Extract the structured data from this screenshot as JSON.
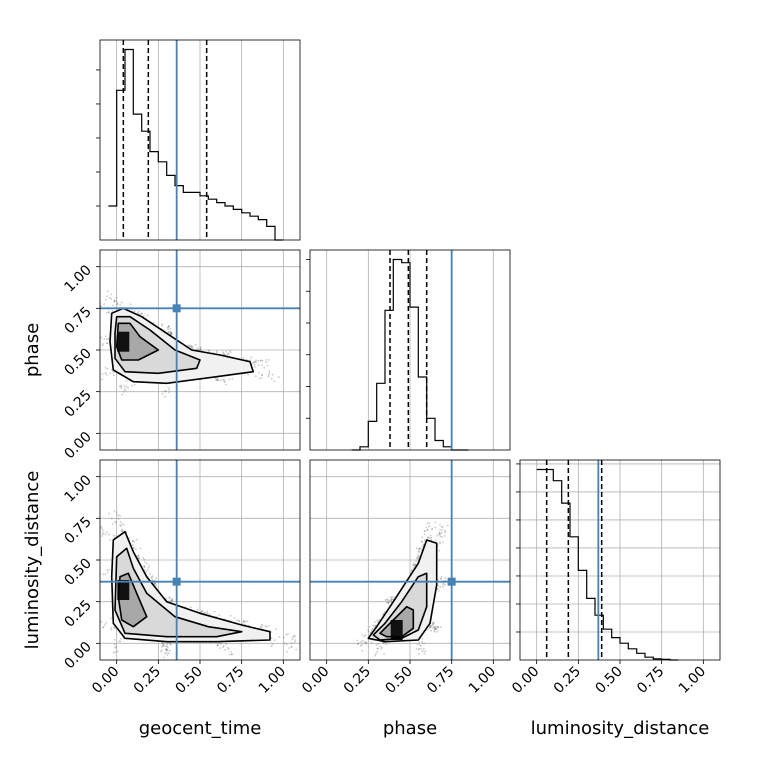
{
  "chart_data": {
    "type": "corner",
    "parameters": [
      "geocent_time",
      "phase",
      "luminosity_distance"
    ],
    "tick_labels": [
      "0.00",
      "0.25",
      "0.50",
      "0.75",
      "1.00"
    ],
    "axis_range": [
      -0.1,
      1.1
    ],
    "grid": true,
    "truths": {
      "geocent_time": 0.36,
      "phase": 0.75,
      "luminosity_distance": 0.37
    },
    "truth_color": "#4682b4",
    "quantiles": {
      "geocent_time": [
        0.04,
        0.19,
        0.54
      ],
      "phase": [
        0.38,
        0.49,
        0.6
      ],
      "luminosity_distance": [
        0.06,
        0.19,
        0.39
      ]
    },
    "marginals": {
      "geocent_time": {
        "bin_edges": [
          -0.05,
          0.0,
          0.05,
          0.1,
          0.15,
          0.2,
          0.25,
          0.3,
          0.35,
          0.4,
          0.45,
          0.5,
          0.55,
          0.6,
          0.65,
          0.7,
          0.75,
          0.8,
          0.85,
          0.9,
          0.95,
          1.0
        ],
        "density": [
          1.0,
          4.4,
          5.6,
          3.7,
          3.2,
          2.6,
          2.3,
          1.9,
          1.6,
          1.4,
          1.4,
          1.3,
          1.2,
          1.1,
          1.0,
          0.9,
          0.8,
          0.7,
          0.6,
          0.4,
          0.0
        ]
      },
      "phase": {
        "bin_edges": [
          0.15,
          0.2,
          0.25,
          0.3,
          0.35,
          0.4,
          0.45,
          0.5,
          0.55,
          0.6,
          0.65,
          0.7,
          0.75,
          0.8,
          0.85
        ],
        "density": [
          0.0,
          0.1,
          0.9,
          2.1,
          4.4,
          6.0,
          5.9,
          4.5,
          2.3,
          1.0,
          0.3,
          0.1,
          0.0,
          0.0
        ]
      },
      "luminosity_distance": {
        "bin_edges": [
          0.0,
          0.05,
          0.1,
          0.15,
          0.2,
          0.25,
          0.3,
          0.35,
          0.4,
          0.45,
          0.5,
          0.55,
          0.6,
          0.65,
          0.7,
          0.75,
          0.8,
          0.85
        ],
        "density": [
          3.4,
          3.4,
          3.2,
          2.8,
          2.2,
          1.6,
          1.1,
          0.8,
          0.55,
          0.4,
          0.3,
          0.2,
          0.12,
          0.05,
          0.02,
          0.01,
          0.0
        ]
      }
    },
    "joint_2d": [
      {
        "x": "geocent_time",
        "y": "phase",
        "density_peak": [
          0.04,
          0.55
        ],
        "levels": [
          [
            [
              -0.03,
              0.72
            ],
            [
              0.04,
              0.75
            ],
            [
              0.15,
              0.7
            ],
            [
              0.3,
              0.6
            ],
            [
              0.45,
              0.5
            ],
            [
              0.62,
              0.47
            ],
            [
              0.8,
              0.43
            ],
            [
              0.82,
              0.37
            ],
            [
              0.6,
              0.34
            ],
            [
              0.3,
              0.3
            ],
            [
              0.1,
              0.31
            ],
            [
              -0.02,
              0.38
            ],
            [
              -0.04,
              0.55
            ]
          ],
          [
            [
              0.0,
              0.7
            ],
            [
              0.08,
              0.7
            ],
            [
              0.2,
              0.62
            ],
            [
              0.35,
              0.5
            ],
            [
              0.5,
              0.44
            ],
            [
              0.48,
              0.39
            ],
            [
              0.25,
              0.36
            ],
            [
              0.05,
              0.37
            ],
            [
              -0.01,
              0.45
            ],
            [
              -0.01,
              0.6
            ]
          ],
          [
            [
              0.01,
              0.66
            ],
            [
              0.08,
              0.66
            ],
            [
              0.14,
              0.58
            ],
            [
              0.25,
              0.5
            ],
            [
              0.13,
              0.44
            ],
            [
              0.03,
              0.44
            ],
            [
              0.0,
              0.52
            ]
          ]
        ]
      },
      {
        "x": "geocent_time",
        "y": "luminosity_distance",
        "density_peak": [
          0.04,
          0.32
        ],
        "levels": [
          [
            [
              -0.02,
              0.62
            ],
            [
              0.05,
              0.67
            ],
            [
              0.1,
              0.55
            ],
            [
              0.18,
              0.4
            ],
            [
              0.3,
              0.25
            ],
            [
              0.5,
              0.18
            ],
            [
              0.75,
              0.11
            ],
            [
              0.92,
              0.07
            ],
            [
              0.92,
              0.02
            ],
            [
              0.6,
              0.01
            ],
            [
              0.3,
              0.01
            ],
            [
              0.05,
              0.03
            ],
            [
              -0.02,
              0.12
            ],
            [
              -0.03,
              0.4
            ]
          ],
          [
            [
              0.0,
              0.52
            ],
            [
              0.06,
              0.57
            ],
            [
              0.1,
              0.45
            ],
            [
              0.18,
              0.3
            ],
            [
              0.35,
              0.16
            ],
            [
              0.55,
              0.1
            ],
            [
              0.75,
              0.07
            ],
            [
              0.6,
              0.04
            ],
            [
              0.3,
              0.04
            ],
            [
              0.05,
              0.06
            ],
            [
              -0.01,
              0.2
            ]
          ],
          [
            [
              0.02,
              0.4
            ],
            [
              0.07,
              0.42
            ],
            [
              0.12,
              0.3
            ],
            [
              0.18,
              0.16
            ],
            [
              0.1,
              0.1
            ],
            [
              0.03,
              0.14
            ],
            [
              0.01,
              0.28
            ]
          ]
        ]
      },
      {
        "x": "phase",
        "y": "luminosity_distance",
        "density_peak": [
          0.42,
          0.08
        ],
        "levels": [
          [
            [
              0.25,
              0.03
            ],
            [
              0.3,
              0.1
            ],
            [
              0.4,
              0.25
            ],
            [
              0.55,
              0.48
            ],
            [
              0.6,
              0.62
            ],
            [
              0.66,
              0.6
            ],
            [
              0.66,
              0.35
            ],
            [
              0.62,
              0.12
            ],
            [
              0.55,
              0.02
            ],
            [
              0.35,
              0.01
            ]
          ],
          [
            [
              0.28,
              0.05
            ],
            [
              0.35,
              0.12
            ],
            [
              0.45,
              0.25
            ],
            [
              0.55,
              0.4
            ],
            [
              0.6,
              0.42
            ],
            [
              0.6,
              0.22
            ],
            [
              0.55,
              0.08
            ],
            [
              0.45,
              0.03
            ],
            [
              0.32,
              0.02
            ]
          ],
          [
            [
              0.32,
              0.06
            ],
            [
              0.4,
              0.14
            ],
            [
              0.48,
              0.22
            ],
            [
              0.52,
              0.2
            ],
            [
              0.52,
              0.09
            ],
            [
              0.45,
              0.04
            ],
            [
              0.36,
              0.04
            ]
          ]
        ]
      }
    ]
  }
}
